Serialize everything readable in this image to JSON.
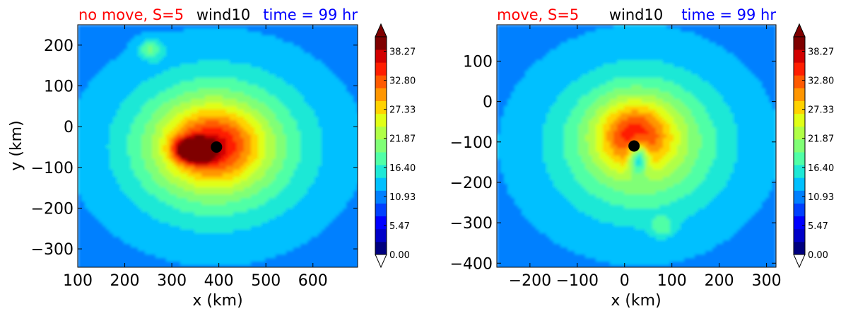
{
  "colors": {
    "title_left": "#ff0000",
    "title_center": "#000000",
    "title_right": "#0000ff",
    "storm_center": "#000000",
    "colormap": [
      "#00007f",
      "#0000c8",
      "#0000ff",
      "#0040ff",
      "#0080ff",
      "#00c0ff",
      "#1ee8d6",
      "#50ffa6",
      "#80ff76",
      "#b0ff46",
      "#e0ff16",
      "#ffd200",
      "#ff9600",
      "#ff5a00",
      "#ff1e00",
      "#d20000",
      "#7f0000"
    ]
  },
  "chart_data": [
    {
      "type": "heatmap",
      "titles": {
        "left": "no move, S=5",
        "center": "wind10",
        "right": "time = 99 hr"
      },
      "xlabel": "x (km)",
      "ylabel": "y (km)",
      "xlim": [
        100,
        695
      ],
      "ylim": [
        -345,
        250
      ],
      "xticks": [
        100,
        200,
        300,
        400,
        500,
        600
      ],
      "yticks": [
        200,
        100,
        0,
        -100,
        -200,
        -300
      ],
      "xtick_labels": [
        "100",
        "200",
        "300",
        "400",
        "500",
        "600"
      ],
      "ytick_labels": [
        "200",
        "100",
        "0",
        "−100",
        "−200",
        "−300"
      ],
      "storm_center": {
        "x": 395,
        "y": -50
      },
      "field": {
        "background": 4,
        "blobs": [
          {
            "x": 395,
            "y": -50,
            "rx": 240,
            "ry": 220,
            "v": 2.5
          },
          {
            "x": 390,
            "y": -50,
            "rx": 160,
            "ry": 150,
            "v": 3.5
          },
          {
            "x": 385,
            "y": -45,
            "rx": 100,
            "ry": 90,
            "v": 5
          },
          {
            "x": 345,
            "y": -55,
            "rx": 35,
            "ry": 25,
            "v": 10
          },
          {
            "x": 360,
            "y": -75,
            "rx": 25,
            "ry": 15,
            "v": 5
          },
          {
            "x": 255,
            "y": 190,
            "rx": 25,
            "ry": 25,
            "v": 3
          }
        ]
      },
      "colorbar": {
        "min": 0,
        "max": 41,
        "tick_values": [
          0,
          5.47,
          10.93,
          16.4,
          21.87,
          27.33,
          32.8,
          38.27
        ],
        "tick_labels": [
          "0.00",
          "5.47",
          "10.93",
          "16.40",
          "21.87",
          "27.33",
          "32.80",
          "38.27"
        ],
        "extend": "both"
      }
    },
    {
      "type": "heatmap",
      "titles": {
        "left": "move, S=5",
        "center": "wind10",
        "right": "time = 99 hr"
      },
      "xlabel": "x (km)",
      "ylabel": "",
      "xlim": [
        -270,
        320
      ],
      "ylim": [
        -410,
        190
      ],
      "xticks": [
        -200,
        -100,
        0,
        100,
        200,
        300
      ],
      "yticks": [
        100,
        0,
        -100,
        -200,
        -300,
        -400
      ],
      "xtick_labels": [
        "−200",
        "−100",
        "0",
        "100",
        "200",
        "300"
      ],
      "ytick_labels": [
        "100",
        "0",
        "−100",
        "−200",
        "−300",
        "−400"
      ],
      "storm_center": {
        "x": 20,
        "y": -110
      },
      "field": {
        "background": 4,
        "blobs": [
          {
            "x": 30,
            "y": -110,
            "rx": 230,
            "ry": 230,
            "v": 2.5
          },
          {
            "x": 35,
            "y": -100,
            "rx": 140,
            "ry": 140,
            "v": 3.5
          },
          {
            "x": 20,
            "y": -80,
            "rx": 75,
            "ry": 80,
            "v": 4.5
          },
          {
            "x": 30,
            "y": -140,
            "rx": 20,
            "ry": 40,
            "v": -6
          },
          {
            "x": 80,
            "y": -310,
            "rx": 25,
            "ry": 25,
            "v": 2
          }
        ]
      },
      "colorbar": {
        "min": 0,
        "max": 41,
        "tick_values": [
          0,
          5.47,
          10.93,
          16.4,
          21.87,
          27.33,
          32.8,
          38.27
        ],
        "tick_labels": [
          "0.00",
          "5.47",
          "10.93",
          "16.40",
          "21.87",
          "27.33",
          "32.80",
          "38.27"
        ],
        "extend": "both"
      }
    }
  ]
}
